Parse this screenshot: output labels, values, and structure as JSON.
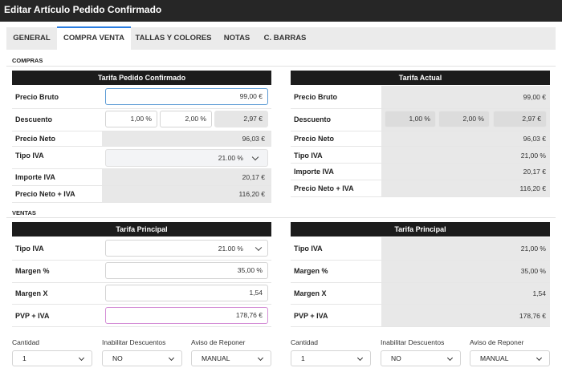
{
  "window": {
    "title": "Editar Artículo Pedido Confirmado"
  },
  "tabs": [
    "GENERAL",
    "COMPRA VENTA",
    "TALLAS Y COLORES",
    "NOTAS",
    "C. BARRAS"
  ],
  "compras": {
    "section": "COMPRAS",
    "left": {
      "header": "Tarifa Pedido Confirmado",
      "labels": [
        "Precio Bruto",
        "Descuento",
        "Precio Neto",
        "Tipo IVA",
        "Importe IVA",
        "Precio Neto + IVA"
      ],
      "precio_bruto": "99,00 €",
      "descuento1": "1,00 %",
      "descuento2": "2,00 %",
      "descuento_total": "2,97 €",
      "precio_neto": "96,03 €",
      "tipo_iva": "21.00 %",
      "importe_iva": "20,17 €",
      "neto_iva": "116,20 €"
    },
    "right": {
      "header": "Tarifa Actual",
      "labels": [
        "Precio Bruto",
        "Descuento",
        "Precio Neto",
        "Tipo IVA",
        "Importe IVA",
        "Precio Neto + IVA"
      ],
      "precio_bruto": "99,00 €",
      "descuento1": "1,00 %",
      "descuento2": "2,00 %",
      "descuento_total": "2,97 €",
      "precio_neto": "96,03 €",
      "tipo_iva": "21,00 %",
      "importe_iva": "20,17 €",
      "neto_iva": "116,20 €"
    }
  },
  "ventas": {
    "section": "VENTAS",
    "left": {
      "header": "Tarifa Principal",
      "labels": [
        "Tipo IVA",
        "Margen %",
        "Margen X",
        "PVP + IVA"
      ],
      "tipo_iva": "21.00 %",
      "margen_pct": "35,00 %",
      "margen_x": "1,54",
      "pvp_iva": "178,76 €"
    },
    "right": {
      "header": "Tarifa Principal",
      "labels": [
        "Tipo IVA",
        "Margen %",
        "Margen X",
        "PVP + IVA"
      ],
      "tipo_iva": "21,00 %",
      "margen_pct": "35,00 %",
      "margen_x": "1,54",
      "pvp_iva": "178,76 €"
    }
  },
  "footer": {
    "left": {
      "cantidad_label": "Cantidad",
      "cantidad": "1",
      "inhab_label": "Inabilitar Descuentos",
      "inhab": "NO",
      "aviso_label": "Aviso de Reponer",
      "aviso": "MANUAL"
    },
    "right": {
      "cantidad_label": "Cantidad",
      "cantidad": "1",
      "inhab_label": "Inabilitar Descuentos",
      "inhab": "NO",
      "aviso_label": "Aviso de Reponer",
      "aviso": "MANUAL"
    }
  }
}
